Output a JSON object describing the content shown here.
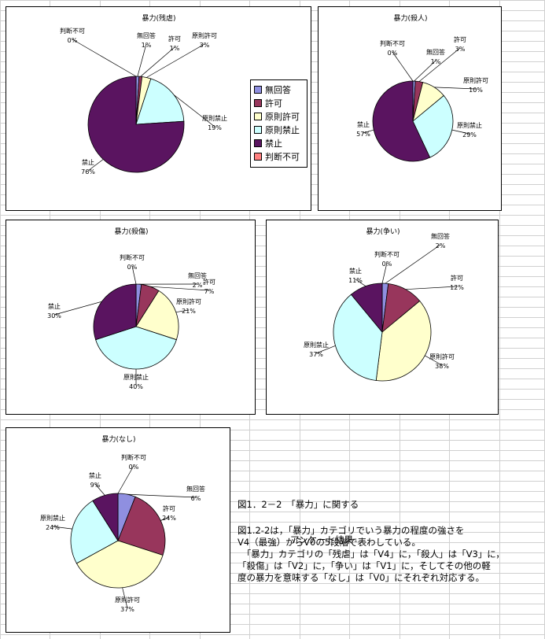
{
  "colors": {
    "無回答": "#8f8fe0",
    "許可": "#98365c",
    "原則許可": "#ffffcc",
    "原則禁止": "#ccffff",
    "禁止": "#5a1460",
    "判断不可": "#ff8080"
  },
  "legend": [
    "無回答",
    "許可",
    "原則許可",
    "原則禁止",
    "禁止",
    "判断不可"
  ],
  "chart_data": [
    {
      "type": "pie",
      "title": "暴力(残虐)",
      "slices": [
        {
          "label": "無回答",
          "value": 1,
          "text": "1%"
        },
        {
          "label": "許可",
          "value": 1,
          "text": "1%"
        },
        {
          "label": "原則許可",
          "value": 3,
          "text": "3%"
        },
        {
          "label": "原則禁止",
          "value": 19,
          "text": "19%"
        },
        {
          "label": "禁止",
          "value": 76,
          "text": "76%"
        },
        {
          "label": "判断不可",
          "value": 0,
          "text": "0%"
        }
      ]
    },
    {
      "type": "pie",
      "title": "暴力(殺人)",
      "slices": [
        {
          "label": "無回答",
          "value": 1,
          "text": "1%"
        },
        {
          "label": "許可",
          "value": 3,
          "text": "3%"
        },
        {
          "label": "原則許可",
          "value": 10,
          "text": "10%"
        },
        {
          "label": "原則禁止",
          "value": 29,
          "text": "29%"
        },
        {
          "label": "禁止",
          "value": 57,
          "text": "57%"
        },
        {
          "label": "判断不可",
          "value": 0,
          "text": "0%"
        }
      ]
    },
    {
      "type": "pie",
      "title": "暴力(殺傷)",
      "slices": [
        {
          "label": "無回答",
          "value": 2,
          "text": "2%"
        },
        {
          "label": "許可",
          "value": 7,
          "text": "7%"
        },
        {
          "label": "原則許可",
          "value": 21,
          "text": "21%"
        },
        {
          "label": "原則禁止",
          "value": 40,
          "text": "40%"
        },
        {
          "label": "禁止",
          "value": 30,
          "text": "30%"
        },
        {
          "label": "判断不可",
          "value": 0,
          "text": "0%"
        }
      ]
    },
    {
      "type": "pie",
      "title": "暴力(争い)",
      "slices": [
        {
          "label": "無回答",
          "value": 2,
          "text": "2%"
        },
        {
          "label": "許可",
          "value": 12,
          "text": "12%"
        },
        {
          "label": "原則許可",
          "value": 38,
          "text": "38%"
        },
        {
          "label": "原則禁止",
          "value": 37,
          "text": "37%"
        },
        {
          "label": "禁止",
          "value": 11,
          "text": "11%"
        },
        {
          "label": "判断不可",
          "value": 0,
          "text": "0%"
        }
      ]
    },
    {
      "type": "pie",
      "title": "暴力(なし)",
      "slices": [
        {
          "label": "無回答",
          "value": 6,
          "text": "6%"
        },
        {
          "label": "許可",
          "value": 24,
          "text": "24%"
        },
        {
          "label": "原則許可",
          "value": 37,
          "text": "37%"
        },
        {
          "label": "原則禁止",
          "value": 24,
          "text": "24%"
        },
        {
          "label": "禁止",
          "value": 9,
          "text": "9%"
        },
        {
          "label": "判断不可",
          "value": 0,
          "text": "0%"
        }
      ]
    }
  ],
  "caption": {
    "figure_title_line1": "図1．2－2　「暴力」に関する",
    "figure_title_line2": "アンケート結果",
    "body": "図1.2-2は，「暴力」カテゴリでいう暴力の程度の強さを\nV4（最強）からV0の5段階で表わしている。\n　「暴力」カテゴリの「残虐」は「V4」に，「殺人」は「V3」に，\n「殺傷」は「V2」に，「争い」は「V1」に，そしてその他の軽\n度の暴力を意味する「なし」は「V0」にそれぞれ対応する。"
  }
}
